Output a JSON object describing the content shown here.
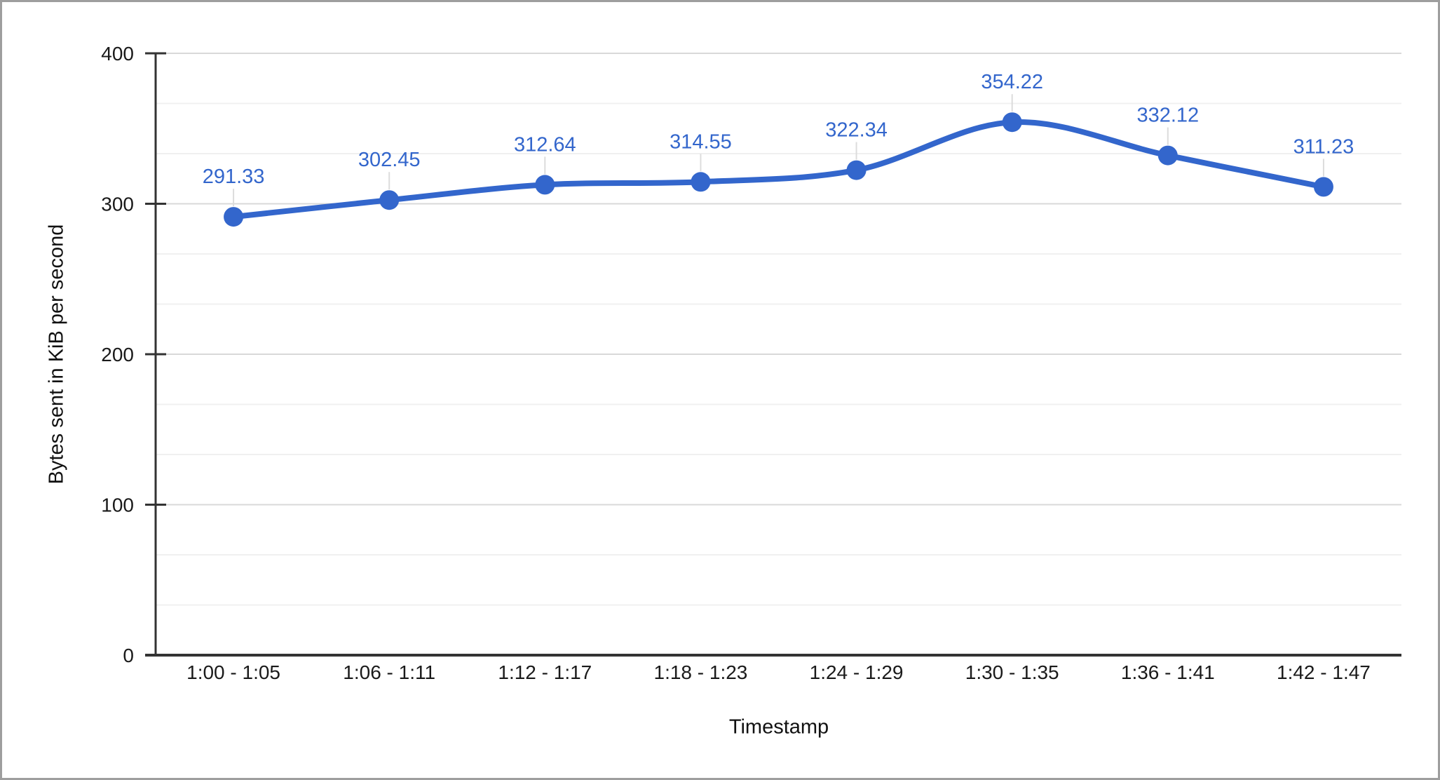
{
  "chart_data": {
    "type": "line",
    "curve": "smooth",
    "title": "",
    "xlabel": "Timestamp",
    "ylabel": "Bytes sent in KiB per second",
    "categories": [
      "1:00 - 1:05",
      "1:06 - 1:11",
      "1:12 - 1:17",
      "1:18 - 1:23",
      "1:24 - 1:29",
      "1:30 - 1:35",
      "1:36 - 1:41",
      "1:42 - 1:47"
    ],
    "values": [
      291.33,
      302.45,
      312.64,
      314.55,
      322.34,
      354.22,
      332.12,
      311.23
    ],
    "point_labels": [
      "291.33",
      "302.45",
      "312.64",
      "314.55",
      "322.34",
      "354.22",
      "332.12",
      "311.23"
    ],
    "ylim": [
      0,
      400
    ],
    "yticks": [
      0,
      100,
      200,
      300,
      400
    ],
    "minor_gridline_divisions": 3,
    "legend": "none",
    "grid": "on",
    "colors": {
      "series": "#3366CC",
      "annotation_text": "#3366CC",
      "annotation_stem": "#DCDCDC",
      "axis_line": "#333333",
      "tick_label": "#1a1a1a",
      "gridline_major": "#D9D9D9",
      "gridline_minor": "#F0F0F0",
      "background": "#FFFFFF",
      "page_border": "#9E9E9E"
    }
  }
}
